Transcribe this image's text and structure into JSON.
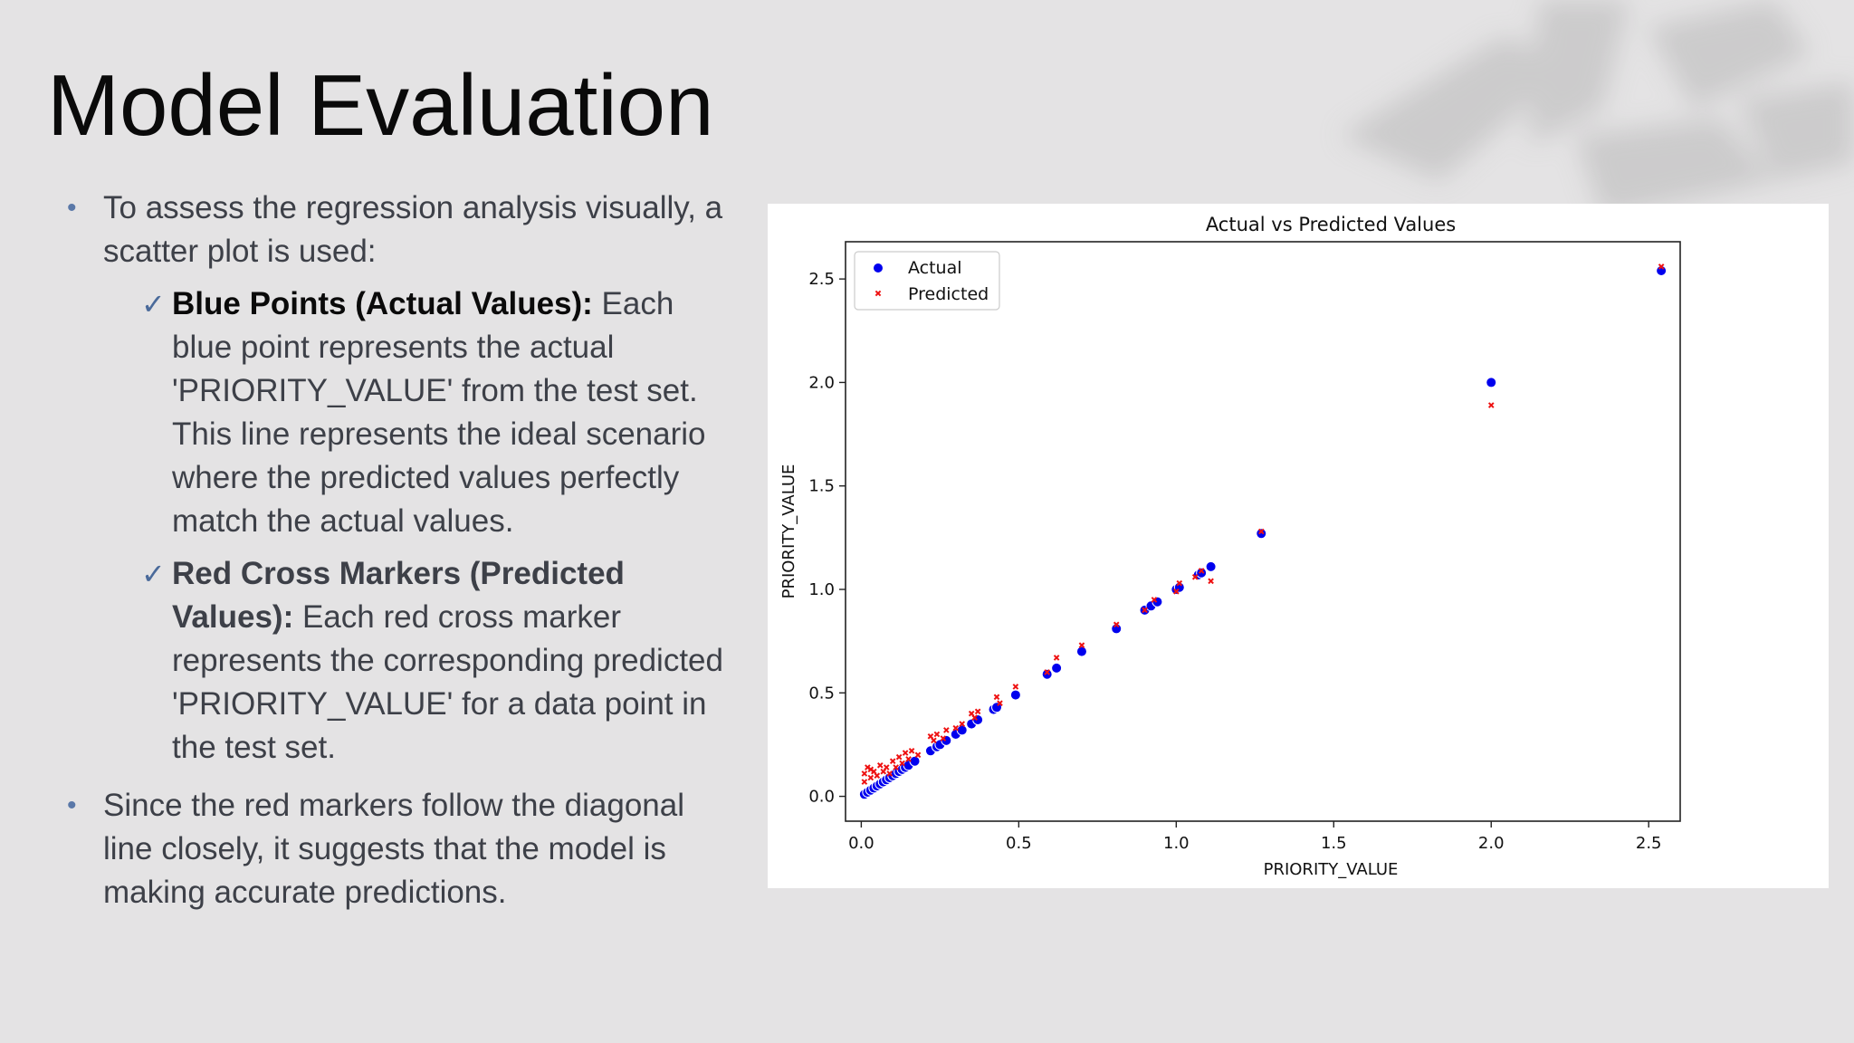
{
  "slide": {
    "title": "Model Evaluation",
    "bullet1": "To assess the regression analysis visually, a scatter plot is used:",
    "sub1_head": "Blue Points (Actual Values):",
    "sub1_text": " Each blue point represents the actual 'PRIORITY_VALUE' from the test set. This line represents the ideal scenario where the predicted values perfectly match the actual values.",
    "sub2_head": "Red Cross Markers (Predicted Values):",
    "sub2_text": " Each red cross marker represents the corresponding predicted 'PRIORITY_VALUE' for a data point in the test set.",
    "bullet2": "Since the red markers follow the diagonal line closely, it suggests that the model is making accurate predictions.",
    "bullet_glyph": "•",
    "check_glyph": "✓"
  },
  "colors": {
    "actual": "#0000ee",
    "predicted": "#ee1111",
    "text": "#3d4048",
    "accent": "#5a78a8"
  },
  "chart_data": {
    "type": "scatter",
    "title": "Actual vs Predicted Values",
    "xlabel": "PRIORITY_VALUE",
    "ylabel": "PRIORITY_VALUE",
    "xlim": [
      -0.05,
      2.6
    ],
    "ylim": [
      -0.12,
      2.68
    ],
    "xticks": [
      0.0,
      0.5,
      1.0,
      1.5,
      2.0,
      2.5
    ],
    "xtick_labels": [
      "0.0",
      "0.5",
      "1.0",
      "1.5",
      "2.0",
      "2.5"
    ],
    "yticks": [
      0.0,
      0.5,
      1.0,
      1.5,
      2.0,
      2.5
    ],
    "ytick_labels": [
      "0.0",
      "0.5",
      "1.0",
      "1.5",
      "2.0",
      "2.5"
    ],
    "grid": false,
    "legend_position": "top-left",
    "series": [
      {
        "name": "Actual",
        "marker": "circle",
        "color": "#0000ee",
        "points": [
          [
            0.01,
            0.01
          ],
          [
            0.02,
            0.02
          ],
          [
            0.03,
            0.03
          ],
          [
            0.04,
            0.04
          ],
          [
            0.05,
            0.05
          ],
          [
            0.06,
            0.06
          ],
          [
            0.07,
            0.07
          ],
          [
            0.08,
            0.08
          ],
          [
            0.09,
            0.09
          ],
          [
            0.1,
            0.1
          ],
          [
            0.11,
            0.11
          ],
          [
            0.12,
            0.12
          ],
          [
            0.13,
            0.13
          ],
          [
            0.14,
            0.14
          ],
          [
            0.15,
            0.15
          ],
          [
            0.17,
            0.17
          ],
          [
            0.22,
            0.22
          ],
          [
            0.24,
            0.24
          ],
          [
            0.25,
            0.25
          ],
          [
            0.27,
            0.27
          ],
          [
            0.3,
            0.3
          ],
          [
            0.32,
            0.32
          ],
          [
            0.35,
            0.35
          ],
          [
            0.37,
            0.37
          ],
          [
            0.42,
            0.42
          ],
          [
            0.43,
            0.43
          ],
          [
            0.49,
            0.49
          ],
          [
            0.59,
            0.59
          ],
          [
            0.62,
            0.62
          ],
          [
            0.7,
            0.7
          ],
          [
            0.81,
            0.81
          ],
          [
            0.9,
            0.9
          ],
          [
            0.92,
            0.92
          ],
          [
            0.94,
            0.94
          ],
          [
            1.0,
            1.0
          ],
          [
            1.01,
            1.01
          ],
          [
            1.07,
            1.07
          ],
          [
            1.08,
            1.08
          ],
          [
            1.11,
            1.11
          ],
          [
            1.27,
            1.27
          ],
          [
            2.0,
            2.0
          ],
          [
            2.54,
            2.54
          ]
        ]
      },
      {
        "name": "Predicted",
        "marker": "x",
        "color": "#ee1111",
        "points": [
          [
            0.01,
            0.07
          ],
          [
            0.01,
            0.11
          ],
          [
            0.02,
            0.14
          ],
          [
            0.03,
            0.09
          ],
          [
            0.03,
            0.13
          ],
          [
            0.04,
            0.12
          ],
          [
            0.05,
            0.1
          ],
          [
            0.06,
            0.15
          ],
          [
            0.07,
            0.12
          ],
          [
            0.08,
            0.14
          ],
          [
            0.09,
            0.11
          ],
          [
            0.1,
            0.17
          ],
          [
            0.11,
            0.14
          ],
          [
            0.12,
            0.19
          ],
          [
            0.13,
            0.16
          ],
          [
            0.14,
            0.21
          ],
          [
            0.15,
            0.18
          ],
          [
            0.16,
            0.22
          ],
          [
            0.18,
            0.2
          ],
          [
            0.22,
            0.29
          ],
          [
            0.23,
            0.27
          ],
          [
            0.24,
            0.3
          ],
          [
            0.26,
            0.28
          ],
          [
            0.27,
            0.32
          ],
          [
            0.3,
            0.33
          ],
          [
            0.32,
            0.35
          ],
          [
            0.35,
            0.4
          ],
          [
            0.36,
            0.38
          ],
          [
            0.37,
            0.41
          ],
          [
            0.43,
            0.48
          ],
          [
            0.44,
            0.45
          ],
          [
            0.49,
            0.53
          ],
          [
            0.59,
            0.6
          ],
          [
            0.62,
            0.67
          ],
          [
            0.7,
            0.73
          ],
          [
            0.81,
            0.83
          ],
          [
            0.9,
            0.9
          ],
          [
            0.93,
            0.95
          ],
          [
            1.0,
            0.99
          ],
          [
            1.01,
            1.03
          ],
          [
            1.06,
            1.06
          ],
          [
            1.08,
            1.09
          ],
          [
            1.11,
            1.04
          ],
          [
            1.27,
            1.28
          ],
          [
            2.0,
            1.89
          ],
          [
            2.54,
            2.56
          ]
        ]
      }
    ]
  }
}
